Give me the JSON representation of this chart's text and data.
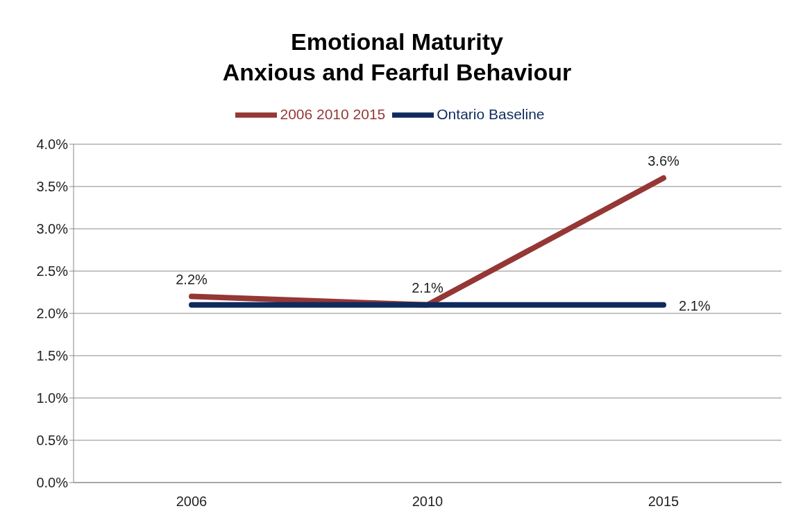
{
  "chart_data": {
    "type": "line",
    "title": "Emotional Maturity\nAnxious and Fearful Behaviour",
    "categories": [
      "2006",
      "2010",
      "2015"
    ],
    "series": [
      {
        "name": "2006 2010 2015",
        "color": "#953735",
        "values": [
          2.2,
          2.1,
          3.6
        ],
        "value_labels": [
          "2.2%",
          "2.1%",
          "3.6%"
        ]
      },
      {
        "name": "Ontario Baseline",
        "color": "#0f2a5f",
        "values": [
          2.1,
          2.1,
          2.1
        ],
        "value_labels": [
          null,
          null,
          "2.1%"
        ]
      }
    ],
    "ylim": [
      0,
      4
    ],
    "yticks": [
      {
        "value": 0,
        "label": "0.0%"
      },
      {
        "value": 0.5,
        "label": "0.5%"
      },
      {
        "value": 1,
        "label": "1.0%"
      },
      {
        "value": 1.5,
        "label": "1.5%"
      },
      {
        "value": 2,
        "label": "2.0%"
      },
      {
        "value": 2.5,
        "label": "2.5%"
      },
      {
        "value": 3,
        "label": "3.0%"
      },
      {
        "value": 3.5,
        "label": "3.5%"
      },
      {
        "value": 4,
        "label": "4.0%"
      }
    ],
    "grid": "y",
    "legend": "top",
    "marker": "none",
    "line_style": "solid"
  }
}
